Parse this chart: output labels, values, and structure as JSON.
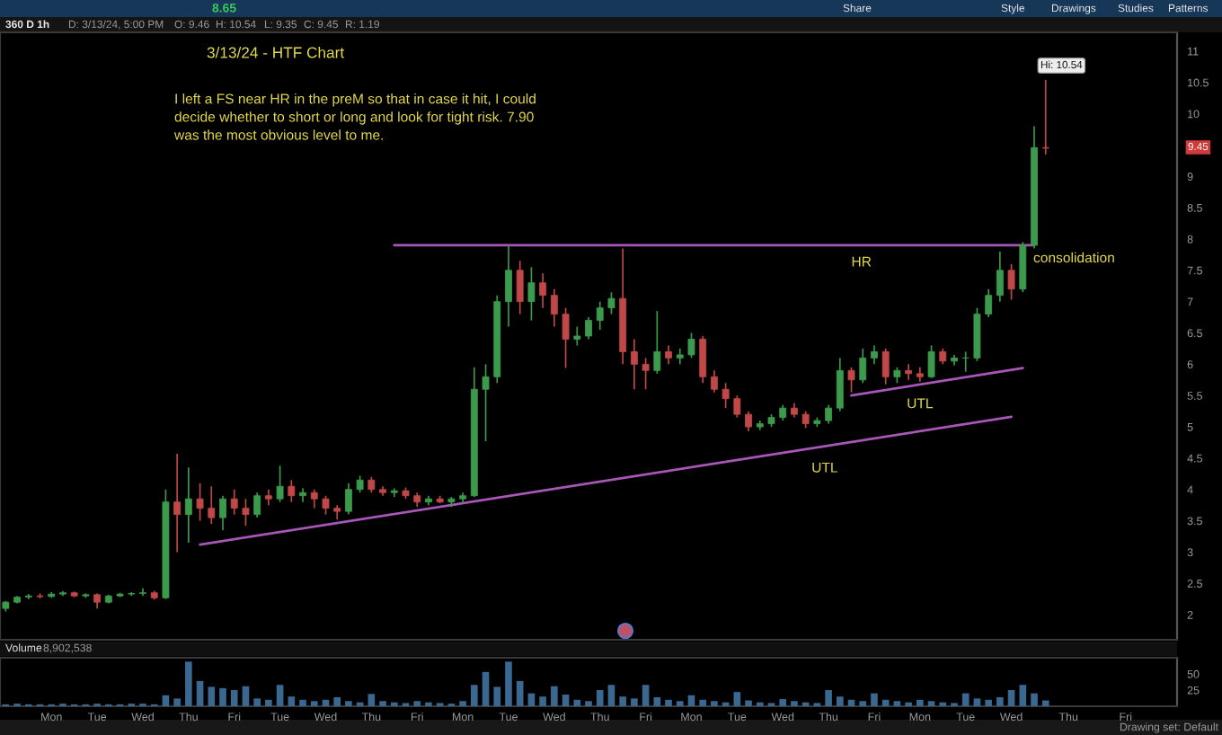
{
  "chart_data": [
    {
      "type": "candlestick",
      "title": "3/13/24 - HTF Chart",
      "categories": [
        null,
        null,
        null,
        null,
        null,
        null,
        null,
        null,
        null,
        null,
        null,
        null,
        null,
        null,
        null,
        null,
        null,
        null,
        null,
        null,
        null,
        null,
        null,
        null,
        null,
        null,
        null,
        null,
        null,
        null,
        null,
        null,
        null,
        null,
        null,
        null,
        null,
        null,
        null,
        null,
        null,
        null,
        null,
        null,
        null,
        null,
        null,
        null,
        null,
        null,
        null,
        null,
        null,
        null,
        null,
        null,
        null,
        null,
        null,
        null,
        null,
        null,
        null,
        null,
        null,
        null,
        null,
        null,
        null,
        null,
        null,
        null,
        null,
        null,
        null,
        null,
        null,
        null,
        null,
        null,
        null,
        null,
        null,
        null,
        null,
        null,
        null,
        null,
        null,
        null,
        null,
        null,
        null,
        null,
        null,
        null,
        null,
        null,
        null,
        null,
        null,
        null,
        null
      ],
      "ohlc": [
        [
          2.1,
          2.22,
          2.05,
          2.2
        ],
        [
          2.2,
          2.3,
          2.18,
          2.28
        ],
        [
          2.28,
          2.33,
          2.25,
          2.3
        ],
        [
          2.3,
          2.34,
          2.26,
          2.29
        ],
        [
          2.29,
          2.36,
          2.27,
          2.33
        ],
        [
          2.33,
          2.38,
          2.3,
          2.35
        ],
        [
          2.35,
          2.37,
          2.28,
          2.3
        ],
        [
          2.3,
          2.34,
          2.27,
          2.32
        ],
        [
          2.32,
          2.34,
          2.1,
          2.2
        ],
        [
          2.2,
          2.32,
          2.18,
          2.3
        ],
        [
          2.3,
          2.35,
          2.28,
          2.33
        ],
        [
          2.33,
          2.36,
          2.3,
          2.34
        ],
        [
          2.34,
          2.42,
          2.3,
          2.35
        ],
        [
          2.35,
          2.38,
          2.24,
          2.27
        ],
        [
          2.27,
          4.0,
          2.25,
          3.8
        ],
        [
          3.8,
          4.57,
          3.0,
          3.6
        ],
        [
          3.6,
          4.35,
          3.15,
          3.85
        ],
        [
          3.85,
          4.1,
          3.5,
          3.7
        ],
        [
          3.7,
          4.05,
          3.45,
          3.55
        ],
        [
          3.55,
          3.9,
          3.35,
          3.85
        ],
        [
          3.85,
          4.0,
          3.6,
          3.7
        ],
        [
          3.7,
          3.85,
          3.42,
          3.6
        ],
        [
          3.6,
          3.95,
          3.55,
          3.9
        ],
        [
          3.9,
          4.0,
          3.75,
          3.85
        ],
        [
          3.85,
          4.38,
          3.8,
          4.05
        ],
        [
          4.05,
          4.15,
          3.8,
          3.9
        ],
        [
          3.9,
          4.02,
          3.8,
          3.95
        ],
        [
          3.95,
          4.0,
          3.7,
          3.85
        ],
        [
          3.85,
          3.9,
          3.6,
          3.7
        ],
        [
          3.7,
          3.75,
          3.52,
          3.65
        ],
        [
          3.65,
          4.1,
          3.6,
          4.0
        ],
        [
          4.0,
          4.22,
          3.95,
          4.15
        ],
        [
          4.15,
          4.2,
          3.95,
          4.0
        ],
        [
          4.0,
          4.05,
          3.9,
          3.95
        ],
        [
          3.95,
          4.02,
          3.88,
          3.98
        ],
        [
          3.98,
          4.03,
          3.85,
          3.9
        ],
        [
          3.9,
          3.95,
          3.72,
          3.8
        ],
        [
          3.8,
          3.9,
          3.75,
          3.85
        ],
        [
          3.85,
          3.9,
          3.78,
          3.8
        ],
        [
          3.8,
          3.88,
          3.72,
          3.85
        ],
        [
          3.85,
          3.95,
          3.78,
          3.9
        ],
        [
          3.9,
          5.95,
          3.88,
          5.6
        ],
        [
          5.6,
          6.0,
          4.77,
          5.8
        ],
        [
          5.8,
          7.1,
          5.7,
          7.0
        ],
        [
          7.0,
          7.9,
          6.6,
          7.5
        ],
        [
          7.5,
          7.65,
          6.8,
          7.0
        ],
        [
          7.0,
          7.55,
          6.7,
          7.3
        ],
        [
          7.3,
          7.45,
          6.9,
          7.1
        ],
        [
          7.1,
          7.2,
          6.6,
          6.8
        ],
        [
          6.8,
          6.9,
          5.94,
          6.4
        ],
        [
          6.4,
          6.6,
          6.3,
          6.45
        ],
        [
          6.45,
          6.75,
          6.4,
          6.7
        ],
        [
          6.7,
          7.0,
          6.55,
          6.9
        ],
        [
          6.9,
          7.15,
          6.8,
          7.05
        ],
        [
          7.05,
          7.85,
          6.0,
          6.2
        ],
        [
          6.2,
          6.4,
          5.6,
          6.0
        ],
        [
          6.0,
          6.1,
          5.6,
          5.9
        ],
        [
          5.9,
          6.85,
          5.85,
          6.2
        ],
        [
          6.2,
          6.3,
          6.0,
          6.1
        ],
        [
          6.1,
          6.25,
          6.0,
          6.15
        ],
        [
          6.15,
          6.5,
          6.1,
          6.4
        ],
        [
          6.4,
          6.45,
          5.7,
          5.8
        ],
        [
          5.8,
          5.9,
          5.55,
          5.6
        ],
        [
          5.6,
          5.7,
          5.3,
          5.45
        ],
        [
          5.45,
          5.5,
          5.15,
          5.2
        ],
        [
          5.2,
          5.25,
          4.93,
          5.0
        ],
        [
          5.0,
          5.1,
          4.95,
          5.05
        ],
        [
          5.05,
          5.2,
          5.0,
          5.15
        ],
        [
          5.15,
          5.35,
          5.1,
          5.3
        ],
        [
          5.3,
          5.38,
          5.15,
          5.2
        ],
        [
          5.2,
          5.25,
          4.98,
          5.05
        ],
        [
          5.05,
          5.15,
          5.0,
          5.1
        ],
        [
          5.1,
          5.35,
          5.05,
          5.3
        ],
        [
          5.3,
          6.1,
          5.25,
          5.9
        ],
        [
          5.9,
          5.95,
          5.55,
          5.75
        ],
        [
          5.75,
          6.25,
          5.7,
          6.1
        ],
        [
          6.1,
          6.3,
          6.0,
          6.2
        ],
        [
          6.2,
          6.25,
          5.68,
          5.8
        ],
        [
          5.8,
          5.95,
          5.7,
          5.9
        ],
        [
          5.9,
          6.0,
          5.75,
          5.85
        ],
        [
          5.85,
          5.95,
          5.72,
          5.8
        ],
        [
          5.8,
          6.3,
          5.78,
          6.2
        ],
        [
          6.2,
          6.25,
          6.0,
          6.05
        ],
        [
          6.05,
          6.15,
          5.98,
          6.1
        ],
        [
          6.1,
          6.2,
          5.88,
          6.1
        ],
        [
          6.1,
          6.9,
          6.05,
          6.8
        ],
        [
          6.8,
          7.2,
          6.75,
          7.1
        ],
        [
          7.1,
          7.8,
          7.0,
          7.5
        ],
        [
          7.5,
          7.6,
          7.03,
          7.2
        ],
        [
          7.2,
          7.95,
          7.15,
          7.9
        ],
        [
          7.9,
          9.8,
          7.85,
          9.46
        ],
        [
          9.46,
          10.54,
          9.35,
          9.45
        ],
        null,
        null,
        null,
        null,
        null,
        null,
        null,
        null,
        null,
        null,
        null
      ],
      "colors": [
        "#3c9a4c",
        "#3c9a4c",
        "#3c9a4c",
        "#c04848",
        "#3c9a4c",
        "#3c9a4c",
        "#c04848",
        "#3c9a4c",
        "#c04848",
        "#3c9a4c",
        "#3c9a4c",
        "#3c9a4c",
        "#3c9a4c",
        "#c04848",
        "#3c9a4c",
        "#c04848",
        "#3c9a4c",
        "#c04848",
        "#c04848",
        "#3c9a4c",
        "#c04848",
        "#c04848",
        "#3c9a4c",
        "#c04848",
        "#3c9a4c",
        "#c04848",
        "#3c9a4c",
        "#c04848",
        "#c04848",
        "#c04848",
        "#3c9a4c",
        "#3c9a4c",
        "#c04848",
        "#c04848",
        "#3c9a4c",
        "#c04848",
        "#c04848",
        "#3c9a4c",
        "#c04848",
        "#3c9a4c",
        "#3c9a4c",
        "#3c9a4c",
        "#3c9a4c",
        "#3c9a4c",
        "#3c9a4c",
        "#c04848",
        "#3c9a4c",
        "#c04848",
        "#c04848",
        "#c04848",
        "#3c9a4c",
        "#3c9a4c",
        "#3c9a4c",
        "#3c9a4c",
        "#c04848",
        "#c04848",
        "#c04848",
        "#3c9a4c",
        "#c04848",
        "#3c9a4c",
        "#3c9a4c",
        "#c04848",
        "#c04848",
        "#c04848",
        "#c04848",
        "#c04848",
        "#3c9a4c",
        "#3c9a4c",
        "#3c9a4c",
        "#c04848",
        "#c04848",
        "#3c9a4c",
        "#3c9a4c",
        "#3c9a4c",
        "#c04848",
        "#3c9a4c",
        "#3c9a4c",
        "#c04848",
        "#3c9a4c",
        "#c04848",
        "#c04848",
        "#3c9a4c",
        "#c04848",
        "#3c9a4c",
        "#3c9a4c",
        "#3c9a4c",
        "#3c9a4c",
        "#3c9a4c",
        "#c04848",
        "#3c9a4c",
        "#3c9a4c",
        "#c04848",
        null,
        null,
        null,
        null,
        null,
        null,
        null,
        null,
        null,
        null,
        null
      ],
      "series": [
        {
          "name": "HR",
          "type": "line",
          "color": "#a857b8",
          "values": [
            null,
            null,
            null,
            null,
            null,
            null,
            null,
            null,
            null,
            null,
            null,
            null,
            null,
            null,
            null,
            null,
            null,
            null,
            null,
            null,
            null,
            null,
            null,
            null,
            null,
            null,
            null,
            null,
            null,
            null,
            null,
            null,
            null,
            null,
            7.9,
            null,
            null,
            null,
            null,
            null,
            null,
            null,
            null,
            null,
            null,
            null,
            null,
            null,
            null,
            null,
            null,
            null,
            null,
            null,
            null,
            null,
            null,
            null,
            null,
            null,
            null,
            null,
            null,
            null,
            null,
            null,
            null,
            null,
            null,
            null,
            null,
            null,
            null,
            null,
            null,
            null,
            null,
            null,
            null,
            null,
            null,
            null,
            null,
            null,
            null,
            null,
            null,
            null,
            null,
            null,
            7.9,
            null,
            null,
            null,
            null,
            null,
            null,
            null,
            null,
            null,
            null,
            null,
            null
          ]
        },
        {
          "name": "UTL",
          "type": "line",
          "color": "#a857b8",
          "values": [
            null,
            null,
            null,
            null,
            null,
            null,
            null,
            null,
            null,
            null,
            null,
            null,
            null,
            null,
            null,
            null,
            null,
            3.12,
            null,
            null,
            null,
            null,
            null,
            null,
            null,
            null,
            null,
            null,
            null,
            null,
            null,
            null,
            null,
            null,
            null,
            null,
            null,
            null,
            null,
            null,
            null,
            null,
            null,
            null,
            null,
            null,
            null,
            null,
            null,
            null,
            null,
            null,
            null,
            null,
            null,
            null,
            null,
            null,
            null,
            null,
            null,
            null,
            null,
            null,
            null,
            null,
            null,
            null,
            null,
            null,
            null,
            null,
            null,
            null,
            null,
            null,
            null,
            null,
            null,
            null,
            null,
            null,
            null,
            null,
            null,
            null,
            null,
            null,
            5.16,
            null,
            null,
            null,
            null,
            null,
            null,
            null,
            null,
            null,
            null,
            null,
            null,
            null,
            null
          ]
        },
        {
          "name": "UTL",
          "type": "line",
          "color": "#a857b8",
          "values": [
            null,
            null,
            null,
            null,
            null,
            null,
            null,
            null,
            null,
            null,
            null,
            null,
            null,
            null,
            null,
            null,
            null,
            null,
            null,
            null,
            null,
            null,
            null,
            null,
            null,
            null,
            null,
            null,
            null,
            null,
            null,
            null,
            null,
            null,
            null,
            null,
            null,
            null,
            null,
            null,
            null,
            null,
            null,
            null,
            null,
            null,
            null,
            null,
            null,
            null,
            null,
            null,
            null,
            null,
            null,
            null,
            null,
            null,
            null,
            null,
            null,
            null,
            null,
            null,
            null,
            null,
            null,
            null,
            null,
            null,
            null,
            null,
            null,
            null,
            5.5,
            null,
            null,
            null,
            null,
            null,
            null,
            null,
            null,
            null,
            null,
            null,
            null,
            null,
            null,
            5.94,
            null,
            null,
            null,
            null,
            null,
            null,
            null,
            null,
            null,
            null,
            null,
            null,
            null
          ]
        }
      ],
      "ylim": [
        1.6,
        11.3
      ],
      "yticks": [
        2,
        2.5,
        3,
        3.5,
        4,
        4.5,
        5,
        5.5,
        6,
        6.5,
        7,
        7.5,
        8,
        8.5,
        9,
        10,
        10.5,
        11
      ],
      "annotations": [
        "I left a FS near HR in the preM so that in case it hit, I could\ndecide whether to short or long and look for tight risk. 7.90\nwas the most obvious level to me.",
        "consolidation",
        "Hi: 10.54",
        "9.45",
        "360 D 1h",
        "D: 3/13/24, 5:00 PM",
        "O: 9.46",
        "H: 10.54",
        "L: 9.35",
        "C: 9.45",
        "R: 1.19",
        "8.65",
        "Share",
        "Style",
        "Drawings",
        "Studies",
        "Patterns"
      ]
    },
    {
      "type": "bar",
      "title": "Volume",
      "color": "#3a6890",
      "categories": [
        null,
        null,
        null,
        null,
        "Mon",
        null,
        null,
        null,
        "Tue",
        null,
        null,
        null,
        "Wed",
        null,
        null,
        null,
        "Thu",
        null,
        null,
        null,
        "Fri",
        null,
        null,
        null,
        "Tue",
        null,
        null,
        null,
        "Wed",
        null,
        null,
        null,
        "Thu",
        null,
        null,
        null,
        "Fri",
        null,
        null,
        null,
        "Mon",
        null,
        null,
        null,
        "Tue",
        null,
        null,
        null,
        "Wed",
        null,
        null,
        null,
        "Thu",
        null,
        null,
        null,
        "Fri",
        null,
        null,
        null,
        "Mon",
        null,
        null,
        null,
        "Tue",
        null,
        null,
        null,
        "Wed",
        null,
        null,
        null,
        "Thu",
        null,
        null,
        null,
        "Fri",
        null,
        null,
        null,
        "Mon",
        null,
        null,
        null,
        "Tue",
        null,
        null,
        null,
        "Wed",
        null,
        null,
        null,
        null,
        "Thu",
        null,
        null,
        null,
        null,
        "Fri",
        null,
        null,
        null,
        null
      ],
      "values": [
        3,
        4,
        3,
        3,
        3,
        4,
        3,
        3,
        4,
        3,
        3,
        4,
        4,
        3,
        17,
        12,
        69,
        39,
        30,
        28,
        25,
        31,
        12,
        10,
        33,
        15,
        10,
        8,
        10,
        14,
        8,
        6,
        19,
        8,
        6,
        5,
        8,
        6,
        5,
        4,
        8,
        33,
        53,
        30,
        69,
        39,
        20,
        15,
        31,
        18,
        10,
        8,
        25,
        33,
        15,
        12,
        33,
        14,
        10,
        8,
        17,
        10,
        8,
        6,
        22,
        9,
        6,
        5,
        11,
        8,
        6,
        5,
        25,
        15,
        10,
        8,
        20,
        10,
        8,
        6,
        10,
        8,
        6,
        5,
        20,
        12,
        10,
        14,
        25,
        33,
        20,
        9,
        null,
        null,
        null,
        null,
        null,
        null,
        null,
        null,
        null,
        null,
        null
      ],
      "ylim": [
        0,
        75
      ],
      "yticks": [
        25,
        50
      ],
      "annotations": [
        "8,902,538",
        "Drawing set: Default"
      ]
    }
  ]
}
